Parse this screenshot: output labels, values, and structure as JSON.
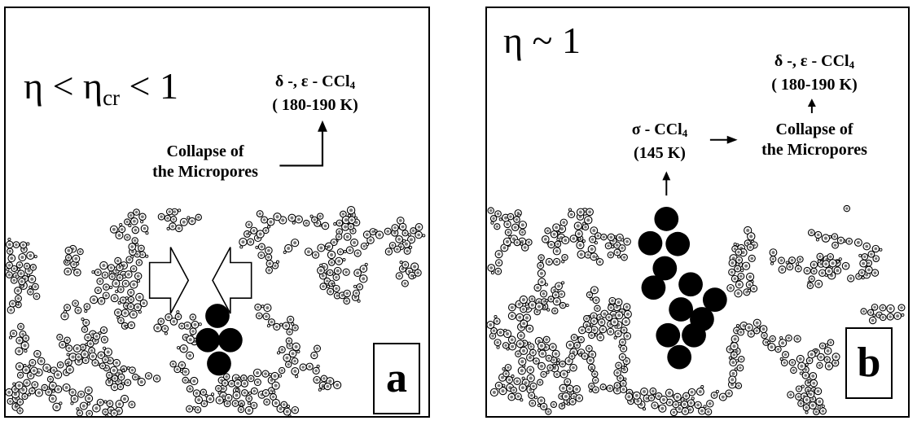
{
  "panel_a": {
    "eta_symbol": "η",
    "eta_mid": " < η",
    "eta_sub": "cr",
    "eta_tail": " < 1",
    "phase_line1_prefix": "δ -, ε - CCl",
    "phase_line1_sub": "4",
    "phase_line2": "( 180-190 K)",
    "collapse_line1": "Collapse of",
    "collapse_line2": "the Micropores",
    "panel_letter": "a"
  },
  "panel_b": {
    "eta_text": "η ~ 1",
    "phase_top_line1_prefix": "δ -, ε - CCl",
    "phase_top_line1_sub": "4",
    "phase_top_line2": "( 180-190 K)",
    "sigma_line1_prefix": "σ - CCl",
    "sigma_line1_sub": "4",
    "sigma_line2": "(145 K)",
    "collapse_line1": "Collapse of",
    "collapse_line2": "the Micropores",
    "panel_letter": "b"
  },
  "colors": {
    "ink": "#000000",
    "background": "#ffffff",
    "molecule_fill": "#ffffff"
  }
}
